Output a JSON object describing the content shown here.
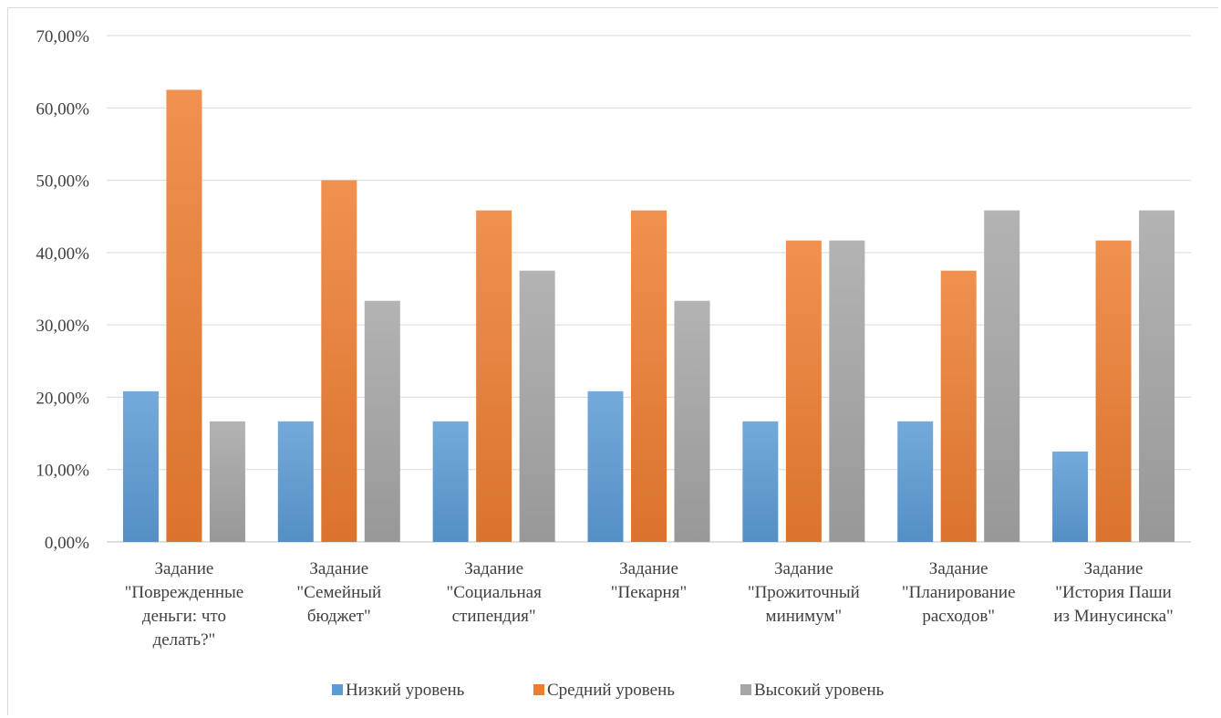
{
  "chart_data": {
    "type": "bar",
    "title": "",
    "xlabel": "",
    "ylabel": "",
    "ylim": [
      0,
      70
    ],
    "y_tick_labels": [
      "0,00%",
      "10,00%",
      "20,00%",
      "30,00%",
      "40,00%",
      "50,00%",
      "60,00%",
      "70,00%"
    ],
    "y_tick_values": [
      0,
      10,
      20,
      30,
      40,
      50,
      60,
      70
    ],
    "grid": true,
    "legend_position": "bottom",
    "categories": [
      [
        "Задание",
        "\"Поврежденные",
        "деньги: что",
        "делать?\""
      ],
      [
        "Задание",
        "\"Семейный",
        "бюджет\""
      ],
      [
        "Задание",
        "\"Социальная",
        "стипендия\""
      ],
      [
        "Задание",
        "\"Пекарня\""
      ],
      [
        "Задание",
        "\"Прожиточный",
        "минимум\""
      ],
      [
        "Задание",
        "\"Планирование",
        "расходов\""
      ],
      [
        "Задание",
        "\"История Паши",
        "из Минусинска\""
      ]
    ],
    "series": [
      {
        "name": "Низкий уровень",
        "color": "#5b9bd5",
        "values": [
          20.83,
          16.67,
          16.67,
          20.83,
          16.67,
          16.67,
          12.5
        ]
      },
      {
        "name": "Средний уровень",
        "color": "#ed7d31",
        "values": [
          62.5,
          50.0,
          45.83,
          45.83,
          41.67,
          37.5,
          41.67
        ]
      },
      {
        "name": "Высокий уровень",
        "color": "#a5a5a5",
        "values": [
          16.67,
          33.33,
          37.5,
          33.33,
          41.67,
          45.83,
          45.83
        ]
      }
    ]
  }
}
